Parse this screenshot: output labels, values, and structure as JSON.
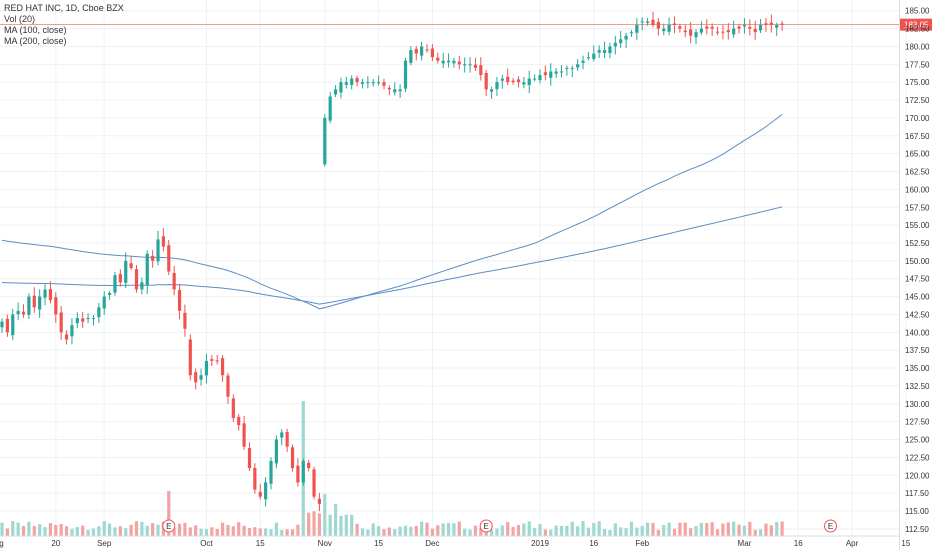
{
  "legend": {
    "symbol": "RED HAT INC, 1D, Cboe BZX",
    "vol": "Vol (20)",
    "ma100": "MA (100, close)",
    "ma200": "MA (200, close)"
  },
  "last_price_label": "183.05",
  "colors": {
    "up": "#26a69a",
    "down": "#ef5350",
    "vol_up": "#9fd8d0",
    "vol_down": "#f4a3a3",
    "ma": "#5a8ec6",
    "grid": "#eef1f4",
    "last_price": "#ef5350"
  },
  "chart_data": {
    "type": "candlestick",
    "y_ticks": [
      "185.00",
      "182.50",
      "180.00",
      "177.50",
      "175.00",
      "172.50",
      "170.00",
      "167.50",
      "165.00",
      "162.50",
      "160.00",
      "157.50",
      "155.00",
      "152.50",
      "150.00",
      "147.50",
      "145.00",
      "142.50",
      "140.00",
      "137.50",
      "135.00",
      "132.50",
      "130.00",
      "127.50",
      "125.00",
      "122.50",
      "120.00",
      "117.50",
      "115.00",
      "112.50"
    ],
    "ylim": [
      111.5,
      186.5
    ],
    "x_ticks": [
      {
        "label": "Aug",
        "i": -1
      },
      {
        "label": "20",
        "i": 10
      },
      {
        "label": "Sep",
        "i": 19
      },
      {
        "label": "Oct",
        "i": 38
      },
      {
        "label": "15",
        "i": 48
      },
      {
        "label": "Nov",
        "i": 60
      },
      {
        "label": "15",
        "i": 70
      },
      {
        "label": "Dec",
        "i": 80
      },
      {
        "label": "2019",
        "i": 100
      },
      {
        "label": "16",
        "i": 110
      },
      {
        "label": "Feb",
        "i": 119
      },
      {
        "label": "Mar",
        "i": 138
      },
      {
        "label": "16",
        "i": 148
      },
      {
        "label": "Apr",
        "i": 158
      },
      {
        "label": "15",
        "i": 168
      }
    ],
    "last_price": 183.05,
    "earnings_markers": [
      {
        "label": "E",
        "i": 31
      },
      {
        "label": "E",
        "i": 90
      },
      {
        "label": "E",
        "i": 154
      }
    ],
    "closes": [
      141.5,
      140,
      142.5,
      143,
      142.5,
      145,
      143.5,
      145,
      146,
      144.5,
      142.5,
      140,
      139,
      141,
      142,
      141.5,
      142,
      142,
      143.5,
      145,
      145.5,
      148,
      147,
      150,
      149,
      146,
      147,
      151,
      150,
      153,
      152,
      148.5,
      146,
      143,
      140.5,
      134,
      133,
      134,
      136,
      136,
      136,
      134,
      131,
      128,
      127,
      124,
      121,
      118,
      117,
      119,
      122,
      125,
      126,
      124,
      121,
      119,
      122,
      121,
      117,
      116,
      170,
      173,
      174,
      175,
      175,
      175.5,
      175,
      175,
      175,
      175,
      175,
      174.5,
      174,
      174,
      174,
      178,
      179.5,
      179,
      180,
      179.5,
      178.5,
      178,
      178,
      178,
      178,
      177.5,
      177.5,
      177.5,
      177,
      176,
      174,
      174,
      175,
      175.5,
      175,
      175,
      175,
      175,
      175.5,
      175.5,
      176,
      176,
      176.5,
      176.5,
      176.5,
      177,
      177,
      177.5,
      178,
      178.5,
      179,
      179.5,
      179.5,
      180,
      180.5,
      181,
      181.5,
      182,
      183,
      183.5,
      183.5,
      183,
      182.5,
      182.5,
      183,
      183,
      182.5,
      182,
      181.5,
      182,
      182.5,
      182.5,
      182.5,
      182,
      182,
      182,
      182.5,
      182.5,
      183,
      182.5,
      182,
      183,
      183,
      183,
      183,
      183.05
    ],
    "vol_unit": "relative"
  }
}
